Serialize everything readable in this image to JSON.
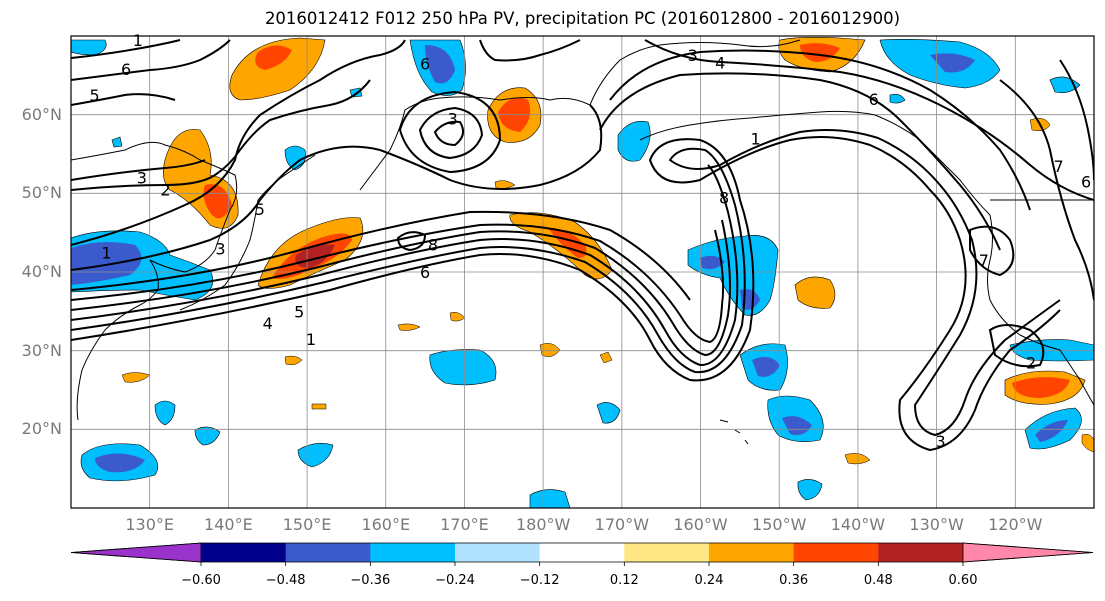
{
  "title": "2016012412 F012 250 hPa PV, precipitation PC (2016012800 - 2016012900)",
  "map": {
    "lat_labels": [
      {
        "text": "60°N",
        "lat": 60
      },
      {
        "text": "50°N",
        "lat": 50
      },
      {
        "text": "40°N",
        "lat": 40
      },
      {
        "text": "30°N",
        "lat": 30
      },
      {
        "text": "20°N",
        "lat": 20
      }
    ],
    "lon_labels": [
      {
        "text": "130°E",
        "lon": 130
      },
      {
        "text": "140°E",
        "lon": 140
      },
      {
        "text": "150°E",
        "lon": 150
      },
      {
        "text": "160°E",
        "lon": 160
      },
      {
        "text": "170°E",
        "lon": 170
      },
      {
        "text": "180°W",
        "lon": 180
      },
      {
        "text": "170°W",
        "lon": 190
      },
      {
        "text": "160°W",
        "lon": 200
      },
      {
        "text": "150°W",
        "lon": 210
      },
      {
        "text": "140°W",
        "lon": 220
      },
      {
        "text": "130°W",
        "lon": 230
      },
      {
        "text": "120°W",
        "lon": 240
      }
    ],
    "extent": {
      "lon_min": 120,
      "lon_max": 250,
      "lat_min": 10,
      "lat_max": 70
    },
    "contour_labels": [
      {
        "text": "1",
        "lon": 128.5,
        "lat": 69.5
      },
      {
        "text": "6",
        "lon": 127,
        "lat": 65.8
      },
      {
        "text": "5",
        "lon": 123,
        "lat": 62.5
      },
      {
        "text": "3",
        "lon": 129,
        "lat": 52
      },
      {
        "text": "2",
        "lon": 132,
        "lat": 50.5
      },
      {
        "text": "1",
        "lon": 124.5,
        "lat": 42.5
      },
      {
        "text": "5",
        "lon": 144,
        "lat": 48
      },
      {
        "text": "3",
        "lon": 139,
        "lat": 43
      },
      {
        "text": "4",
        "lon": 145,
        "lat": 33.5
      },
      {
        "text": "5",
        "lon": 149,
        "lat": 35
      },
      {
        "text": "1",
        "lon": 150.5,
        "lat": 31.5
      },
      {
        "text": "6",
        "lon": 165,
        "lat": 40
      },
      {
        "text": "8",
        "lon": 166,
        "lat": 43.5
      },
      {
        "text": "6",
        "lon": 165,
        "lat": 66.5
      },
      {
        "text": "3",
        "lon": 168.5,
        "lat": 59.5
      },
      {
        "text": "3",
        "lon": 199,
        "lat": 67.6
      },
      {
        "text": "4",
        "lon": 202.5,
        "lat": 66.6
      },
      {
        "text": "1",
        "lon": 207,
        "lat": 57
      },
      {
        "text": "8",
        "lon": 203,
        "lat": 49.5
      },
      {
        "text": "6",
        "lon": 222,
        "lat": 62
      },
      {
        "text": "3",
        "lon": 230.5,
        "lat": 18.5
      },
      {
        "text": "7",
        "lon": 245.5,
        "lat": 53.5
      },
      {
        "text": "6",
        "lon": 249,
        "lat": 51.5
      },
      {
        "text": "7",
        "lon": 236,
        "lat": 41.5
      },
      {
        "text": "2",
        "lon": 242,
        "lat": 28.5
      }
    ]
  },
  "colorbar": {
    "colors": [
      "#9933cc",
      "#00008b",
      "#3b5bcc",
      "#00bfff",
      "#b0e2ff",
      "#ffffff",
      "#ffe884",
      "#ffa500",
      "#ff4500",
      "#b22222",
      "#ff88aa"
    ],
    "labels": [
      "−0.60",
      "−0.48",
      "−0.36",
      "−0.24",
      "−0.12",
      "0.12",
      "0.24",
      "0.36",
      "0.48",
      "0.60"
    ]
  }
}
